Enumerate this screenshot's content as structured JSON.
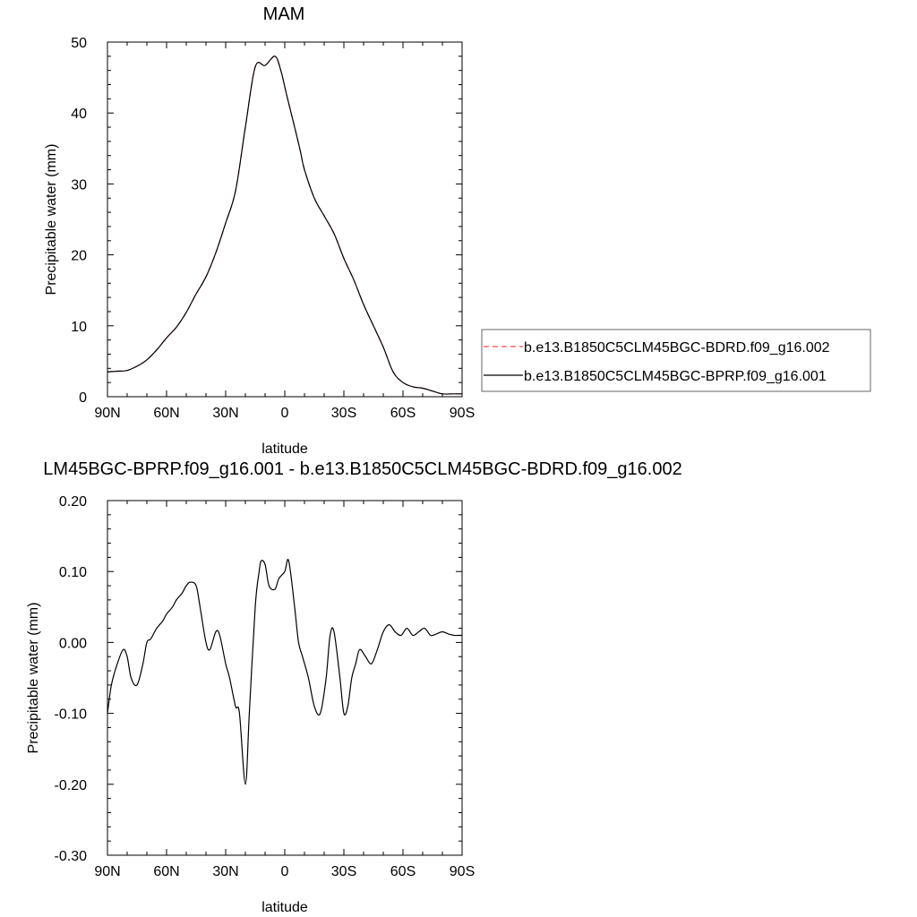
{
  "chart_data": [
    {
      "type": "line",
      "title": "MAM",
      "xlabel": "latitude",
      "ylabel": "Precipitable water (mm)",
      "xlim": [
        90,
        -90
      ],
      "ylim": [
        0,
        50
      ],
      "x_ticks": [
        90,
        60,
        30,
        0,
        -30,
        -60,
        -90
      ],
      "x_tick_labels": [
        "90N",
        "60N",
        "30N",
        "0",
        "30S",
        "60S",
        "90S"
      ],
      "y_ticks": [
        0,
        10,
        20,
        30,
        40,
        50
      ],
      "y_tick_labels": [
        "0",
        "10",
        "20",
        "30",
        "40",
        "50"
      ],
      "grid": false,
      "legend": {
        "placement": "right",
        "entries": [
          "b.e13.B1850C5CLM45BGC-BDRD.f09_g16.002",
          "b.e13.B1850C5CLM45BGC-BPRP.f09_g16.001"
        ]
      },
      "x": [
        90,
        85,
        80,
        75,
        70,
        65,
        60,
        55,
        50,
        45,
        40,
        35,
        30,
        25,
        20,
        15,
        10,
        5,
        2,
        -1,
        -5,
        -8,
        -10,
        -15,
        -20,
        -25,
        -30,
        -35,
        -40,
        -45,
        -50,
        -55,
        -60,
        -65,
        -70,
        -75,
        -80,
        -85,
        -90
      ],
      "series": [
        {
          "name": "b.e13.B1850C5CLM45BGC-BDRD.f09_g16.002",
          "color": "#ff4d4d",
          "dash": "dashed",
          "values": [
            3.5,
            3.6,
            3.7,
            4.3,
            5.2,
            6.6,
            8.3,
            9.8,
            11.9,
            14.5,
            16.9,
            20.3,
            24.5,
            29.0,
            38.0,
            46.5,
            46.7,
            48.0,
            46.0,
            42.5,
            38.0,
            34.5,
            32.0,
            28.0,
            25.5,
            23.0,
            19.5,
            16.5,
            13.0,
            10.0,
            7.0,
            3.5,
            2.0,
            1.4,
            1.2,
            0.8,
            0.4,
            0.4,
            0.4
          ]
        },
        {
          "name": "b.e13.B1850C5CLM45BGC-BPRP.f09_g16.001",
          "color": "#000000",
          "dash": "solid",
          "values": [
            3.5,
            3.6,
            3.7,
            4.3,
            5.2,
            6.6,
            8.3,
            9.8,
            11.9,
            14.5,
            16.9,
            20.3,
            24.5,
            29.0,
            38.0,
            46.5,
            46.7,
            48.0,
            46.0,
            42.5,
            38.0,
            34.5,
            32.0,
            28.0,
            25.5,
            23.0,
            19.5,
            16.5,
            13.0,
            10.0,
            7.0,
            3.5,
            2.0,
            1.4,
            1.2,
            0.8,
            0.4,
            0.4,
            0.4
          ]
        }
      ]
    },
    {
      "type": "line",
      "title": "LM45BGC-BPRP.f09_g16.001 - b.e13.B1850C5CLM45BGC-BDRD.f09_g16.002",
      "xlabel": "latitude",
      "ylabel": "Precipitable water (mm)",
      "xlim": [
        90,
        -90
      ],
      "ylim": [
        -0.3,
        0.2
      ],
      "x_ticks": [
        90,
        60,
        30,
        0,
        -30,
        -60,
        -90
      ],
      "x_tick_labels": [
        "90N",
        "60N",
        "30N",
        "0",
        "30S",
        "60S",
        "90S"
      ],
      "y_ticks": [
        -0.3,
        -0.2,
        -0.1,
        0.0,
        0.1,
        0.2
      ],
      "y_tick_labels": [
        "-0.30",
        "-0.20",
        "-0.10",
        "0.00",
        "0.10",
        "0.20"
      ],
      "grid": false,
      "x": [
        90,
        88,
        85,
        82,
        80,
        78,
        75,
        72,
        70,
        68,
        65,
        62,
        60,
        57,
        55,
        52,
        50,
        48,
        45,
        43,
        40,
        38,
        35,
        33,
        30,
        28,
        25,
        23,
        20,
        18,
        15,
        13,
        12,
        10,
        8,
        5,
        3,
        0,
        -2,
        -5,
        -7,
        -9,
        -12,
        -15,
        -18,
        -21,
        -23,
        -25,
        -28,
        -30,
        -32,
        -34,
        -36,
        -38,
        -41,
        -44,
        -47,
        -50,
        -53,
        -56,
        -59,
        -62,
        -65,
        -68,
        -71,
        -74,
        -77,
        -80,
        -83,
        -86,
        -88,
        -90
      ],
      "series": [
        {
          "name": "",
          "color": "#000000",
          "dash": "solid",
          "values": [
            -0.1,
            -0.06,
            -0.03,
            -0.01,
            -0.02,
            -0.05,
            -0.06,
            -0.03,
            0.0,
            0.005,
            0.02,
            0.03,
            0.04,
            0.05,
            0.06,
            0.07,
            0.08,
            0.085,
            0.08,
            0.05,
            0.0,
            -0.01,
            0.015,
            0.01,
            -0.03,
            -0.05,
            -0.09,
            -0.1,
            -0.2,
            -0.1,
            0.05,
            0.1,
            0.115,
            0.11,
            0.08,
            0.075,
            0.09,
            0.1,
            0.115,
            0.05,
            0.0,
            -0.02,
            -0.05,
            -0.09,
            -0.1,
            -0.05,
            0.01,
            0.015,
            -0.05,
            -0.1,
            -0.09,
            -0.05,
            -0.03,
            -0.01,
            -0.02,
            -0.03,
            -0.01,
            0.015,
            0.025,
            0.015,
            0.01,
            0.02,
            0.01,
            0.015,
            0.02,
            0.01,
            0.012,
            0.015,
            0.012,
            0.01,
            0.01,
            0.01
          ]
        }
      ]
    }
  ]
}
